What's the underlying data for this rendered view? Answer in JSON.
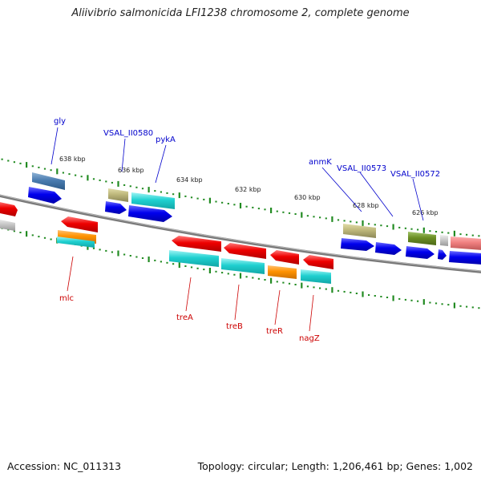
{
  "title": "Aliivibrio salmonicida LFI1238 chromosome 2, complete genome",
  "footer": {
    "accession": "Accession: NC_011313",
    "stats": "Topology: circular; Length: 1,206,461 bp; Genes: 1,002"
  },
  "colors": {
    "backbone": "#808080",
    "tick": "#228B22",
    "forward_label": "#0000CC",
    "reverse_label": "#CC0000"
  },
  "ticks": [
    {
      "label": "638 kbp"
    },
    {
      "label": "636 kbp"
    },
    {
      "label": "634 kbp"
    },
    {
      "label": "632 kbp"
    },
    {
      "label": "630 kbp"
    },
    {
      "label": "628 kbp"
    },
    {
      "label": "626 kbp"
    }
  ],
  "forward_labels": [
    {
      "text": "gly"
    },
    {
      "text": "VSAL_II0580"
    },
    {
      "text": "pykA"
    },
    {
      "text": "anmK"
    },
    {
      "text": "VSAL_II0573"
    },
    {
      "text": "VSAL_II0572"
    }
  ],
  "reverse_labels": [
    {
      "text": "mlc"
    },
    {
      "text": "treA"
    },
    {
      "text": "treB"
    },
    {
      "text": "treR"
    },
    {
      "text": "nagZ"
    }
  ]
}
